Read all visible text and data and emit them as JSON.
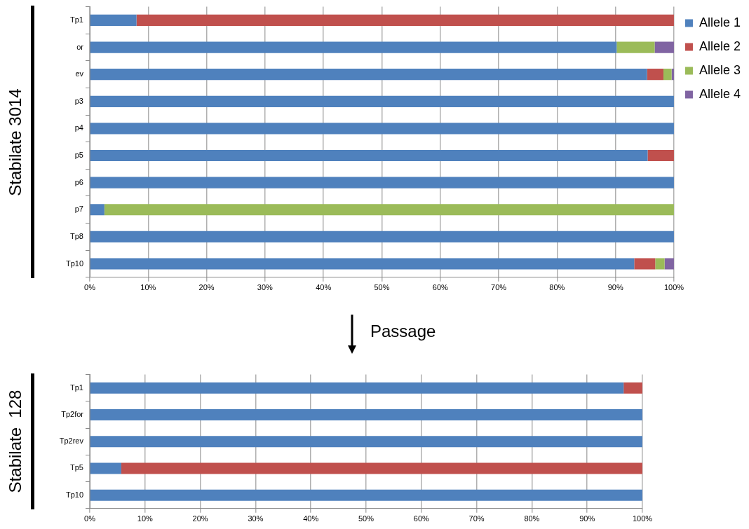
{
  "chart_data": [
    {
      "type": "bar",
      "orientation": "horizontal",
      "stacked": true,
      "ylabel": "Stabilate 3014",
      "categories": [
        "Tp1",
        "or",
        "ev",
        "p3",
        "p4",
        "p5",
        "p6",
        "p7",
        "Tp8",
        "Tp10"
      ],
      "series": [
        {
          "name": "Allele 1",
          "color": "#4f81bd",
          "values": [
            8,
            90.2,
            95.4,
            100,
            100,
            95.5,
            100,
            2.5,
            100,
            93.2
          ]
        },
        {
          "name": "Allele 2",
          "color": "#c0504d",
          "values": [
            92,
            null,
            2.8,
            null,
            null,
            4.5,
            null,
            null,
            null,
            3.6
          ]
        },
        {
          "name": "Allele 3",
          "color": "#9bbb59",
          "values": [
            null,
            6.5,
            1.4,
            null,
            null,
            null,
            null,
            97.5,
            null,
            1.6
          ]
        },
        {
          "name": "Allele 4",
          "color": "#8064a2",
          "values": [
            null,
            3.3,
            0.4,
            null,
            null,
            null,
            null,
            null,
            null,
            1.6
          ]
        }
      ],
      "xlim": [
        0,
        100
      ],
      "xticks": [
        {
          "value": 0,
          "label": "0%"
        },
        {
          "value": 10,
          "label": "10%"
        },
        {
          "value": 20,
          "label": "20%"
        },
        {
          "value": 30,
          "label": "30%"
        },
        {
          "value": 40,
          "label": "40%"
        },
        {
          "value": 50,
          "label": "50%"
        },
        {
          "value": 60,
          "label": "60%"
        },
        {
          "value": 70,
          "label": "70%"
        },
        {
          "value": 80,
          "label": "80%"
        },
        {
          "value": 90,
          "label": "90%"
        },
        {
          "value": 100,
          "label": "100%"
        }
      ],
      "grid": "x",
      "legend": "top right",
      "annotations": [
        "Passage"
      ]
    },
    {
      "type": "bar",
      "orientation": "horizontal",
      "stacked": true,
      "ylabel": "Stabilate  128",
      "categories": [
        "Tp1",
        "Tp2for",
        "Tp2rev",
        "Tp5",
        "Tp10"
      ],
      "series": [
        {
          "color": "#4f81bd",
          "values": [
            96.6,
            100,
            100,
            5.7,
            100
          ]
        },
        {
          "color": "#c0504d",
          "values": [
            3.4,
            null,
            null,
            94.3,
            null
          ]
        }
      ],
      "xlim": [
        0,
        100
      ],
      "xticks": [
        {
          "value": 0,
          "label": "0%"
        },
        {
          "value": 10,
          "label": "10%"
        },
        {
          "value": 20,
          "label": "20%"
        },
        {
          "value": 30,
          "label": "30%"
        },
        {
          "value": 40,
          "label": "40%"
        },
        {
          "value": 50,
          "label": "50%"
        },
        {
          "value": 60,
          "label": "60%"
        },
        {
          "value": 70,
          "label": "70%"
        },
        {
          "value": 80,
          "label": "80%"
        },
        {
          "value": 90,
          "label": "90%"
        },
        {
          "value": 100,
          "label": "100%"
        }
      ],
      "grid": "x"
    }
  ]
}
